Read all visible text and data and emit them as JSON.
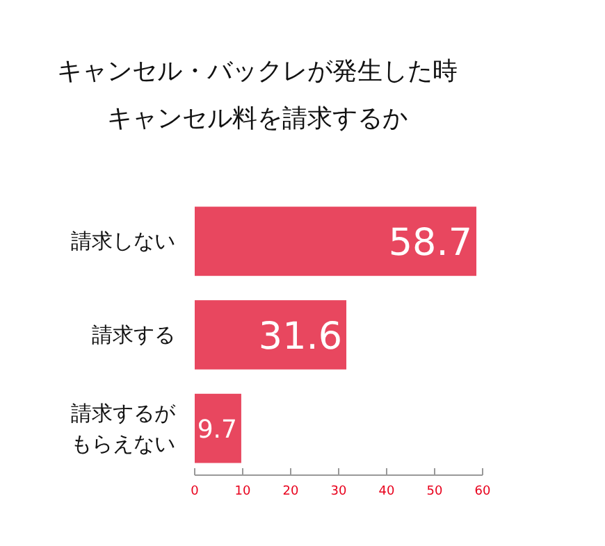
{
  "chart_data": {
    "type": "bar",
    "orientation": "horizontal",
    "title": "キャンセル・バックレが発生した時キャンセル料を請求するか",
    "categories": [
      "請求しない",
      "請求する",
      "請求するがもらえない"
    ],
    "values": [
      58.7,
      31.6,
      9.7
    ],
    "color": "#e8475f",
    "data_labels": true,
    "xlim": [
      0,
      60
    ],
    "xticks": [
      0,
      10,
      20,
      30,
      40,
      50,
      60
    ],
    "grid": false
  }
}
